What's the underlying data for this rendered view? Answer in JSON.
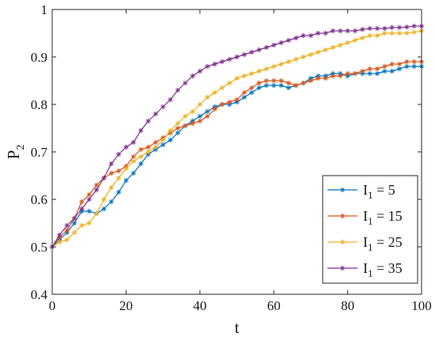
{
  "chart_data": {
    "type": "line",
    "xlabel": "t",
    "ylabel": "P",
    "ylabel_sub": "2",
    "xlim": [
      0,
      100
    ],
    "ylim": [
      0.4,
      1.0
    ],
    "xticks": [
      0,
      20,
      40,
      60,
      80,
      100
    ],
    "yticks": [
      0.4,
      0.5,
      0.6,
      0.7,
      0.8,
      0.9,
      1.0
    ],
    "xtick_labels": [
      "0",
      "20",
      "40",
      "60",
      "80",
      "100"
    ],
    "ytick_labels": [
      "0.4",
      "0.5",
      "0.6",
      "0.7",
      "0.8",
      "0.9",
      "1"
    ],
    "marker": "asterisk",
    "legend_position": "bottom-right",
    "grid": false,
    "series": [
      {
        "name": "I1 = 5",
        "legend_main": "I",
        "legend_sub": "1",
        "legend_rest": " =  5",
        "color": "#0072BD",
        "x": [
          0,
          2,
          4,
          6,
          8,
          10,
          12,
          14,
          16,
          18,
          20,
          22,
          24,
          26,
          28,
          30,
          32,
          34,
          36,
          38,
          40,
          42,
          44,
          46,
          48,
          50,
          52,
          54,
          56,
          58,
          60,
          62,
          64,
          66,
          68,
          70,
          72,
          74,
          76,
          78,
          80,
          82,
          84,
          86,
          88,
          90,
          92,
          94,
          96,
          98,
          100
        ],
        "y": [
          0.5,
          0.515,
          0.53,
          0.55,
          0.575,
          0.575,
          0.57,
          0.58,
          0.595,
          0.615,
          0.64,
          0.655,
          0.675,
          0.695,
          0.705,
          0.715,
          0.725,
          0.74,
          0.755,
          0.765,
          0.775,
          0.785,
          0.795,
          0.8,
          0.8,
          0.805,
          0.815,
          0.825,
          0.835,
          0.84,
          0.84,
          0.84,
          0.835,
          0.84,
          0.845,
          0.855,
          0.86,
          0.86,
          0.865,
          0.865,
          0.86,
          0.865,
          0.865,
          0.865,
          0.865,
          0.87,
          0.87,
          0.875,
          0.88,
          0.88,
          0.88
        ]
      },
      {
        "name": "I1 = 15",
        "legend_main": "I",
        "legend_sub": "1",
        "legend_rest": " = 15",
        "color": "#D95319",
        "x": [
          0,
          2,
          4,
          6,
          8,
          10,
          12,
          14,
          16,
          18,
          20,
          22,
          24,
          26,
          28,
          30,
          32,
          34,
          36,
          38,
          40,
          42,
          44,
          46,
          48,
          50,
          52,
          54,
          56,
          58,
          60,
          62,
          64,
          66,
          68,
          70,
          72,
          74,
          76,
          78,
          80,
          82,
          84,
          86,
          88,
          90,
          92,
          94,
          96,
          98,
          100
        ],
        "y": [
          0.5,
          0.52,
          0.535,
          0.56,
          0.595,
          0.61,
          0.63,
          0.645,
          0.655,
          0.66,
          0.67,
          0.69,
          0.705,
          0.71,
          0.72,
          0.73,
          0.74,
          0.75,
          0.755,
          0.76,
          0.765,
          0.775,
          0.79,
          0.8,
          0.805,
          0.81,
          0.825,
          0.835,
          0.845,
          0.85,
          0.85,
          0.85,
          0.845,
          0.84,
          0.845,
          0.85,
          0.855,
          0.855,
          0.86,
          0.86,
          0.865,
          0.865,
          0.87,
          0.875,
          0.875,
          0.88,
          0.885,
          0.885,
          0.89,
          0.89,
          0.89
        ]
      },
      {
        "name": "I1 = 25",
        "legend_main": "I",
        "legend_sub": "1",
        "legend_rest": " = 25",
        "color": "#EDB120",
        "x": [
          0,
          2,
          4,
          6,
          8,
          10,
          12,
          14,
          16,
          18,
          20,
          22,
          24,
          26,
          28,
          30,
          32,
          34,
          36,
          38,
          40,
          42,
          44,
          46,
          48,
          50,
          52,
          54,
          56,
          58,
          60,
          62,
          64,
          66,
          68,
          70,
          72,
          74,
          76,
          78,
          80,
          82,
          84,
          86,
          88,
          90,
          92,
          94,
          96,
          98,
          100
        ],
        "y": [
          0.5,
          0.51,
          0.515,
          0.53,
          0.545,
          0.55,
          0.57,
          0.6,
          0.625,
          0.645,
          0.665,
          0.68,
          0.69,
          0.7,
          0.71,
          0.725,
          0.745,
          0.76,
          0.775,
          0.785,
          0.8,
          0.815,
          0.825,
          0.835,
          0.845,
          0.855,
          0.86,
          0.865,
          0.87,
          0.875,
          0.88,
          0.885,
          0.89,
          0.895,
          0.9,
          0.905,
          0.91,
          0.915,
          0.92,
          0.925,
          0.93,
          0.935,
          0.94,
          0.945,
          0.945,
          0.95,
          0.95,
          0.95,
          0.95,
          0.952,
          0.955
        ]
      },
      {
        "name": "I1 = 35",
        "legend_main": "I",
        "legend_sub": "1",
        "legend_rest": " = 35",
        "color": "#7E2F8E",
        "x": [
          0,
          2,
          4,
          6,
          8,
          10,
          12,
          14,
          16,
          18,
          20,
          22,
          24,
          26,
          28,
          30,
          32,
          34,
          36,
          38,
          40,
          42,
          44,
          46,
          48,
          50,
          52,
          54,
          56,
          58,
          60,
          62,
          64,
          66,
          68,
          70,
          72,
          74,
          76,
          78,
          80,
          82,
          84,
          86,
          88,
          90,
          92,
          94,
          96,
          98,
          100
        ],
        "y": [
          0.5,
          0.525,
          0.545,
          0.56,
          0.58,
          0.6,
          0.62,
          0.645,
          0.675,
          0.695,
          0.71,
          0.72,
          0.745,
          0.765,
          0.78,
          0.795,
          0.81,
          0.83,
          0.845,
          0.86,
          0.87,
          0.88,
          0.885,
          0.89,
          0.895,
          0.9,
          0.905,
          0.91,
          0.915,
          0.92,
          0.925,
          0.93,
          0.935,
          0.94,
          0.945,
          0.945,
          0.95,
          0.95,
          0.955,
          0.955,
          0.955,
          0.955,
          0.958,
          0.96,
          0.96,
          0.96,
          0.962,
          0.962,
          0.963,
          0.965,
          0.965
        ]
      }
    ]
  }
}
